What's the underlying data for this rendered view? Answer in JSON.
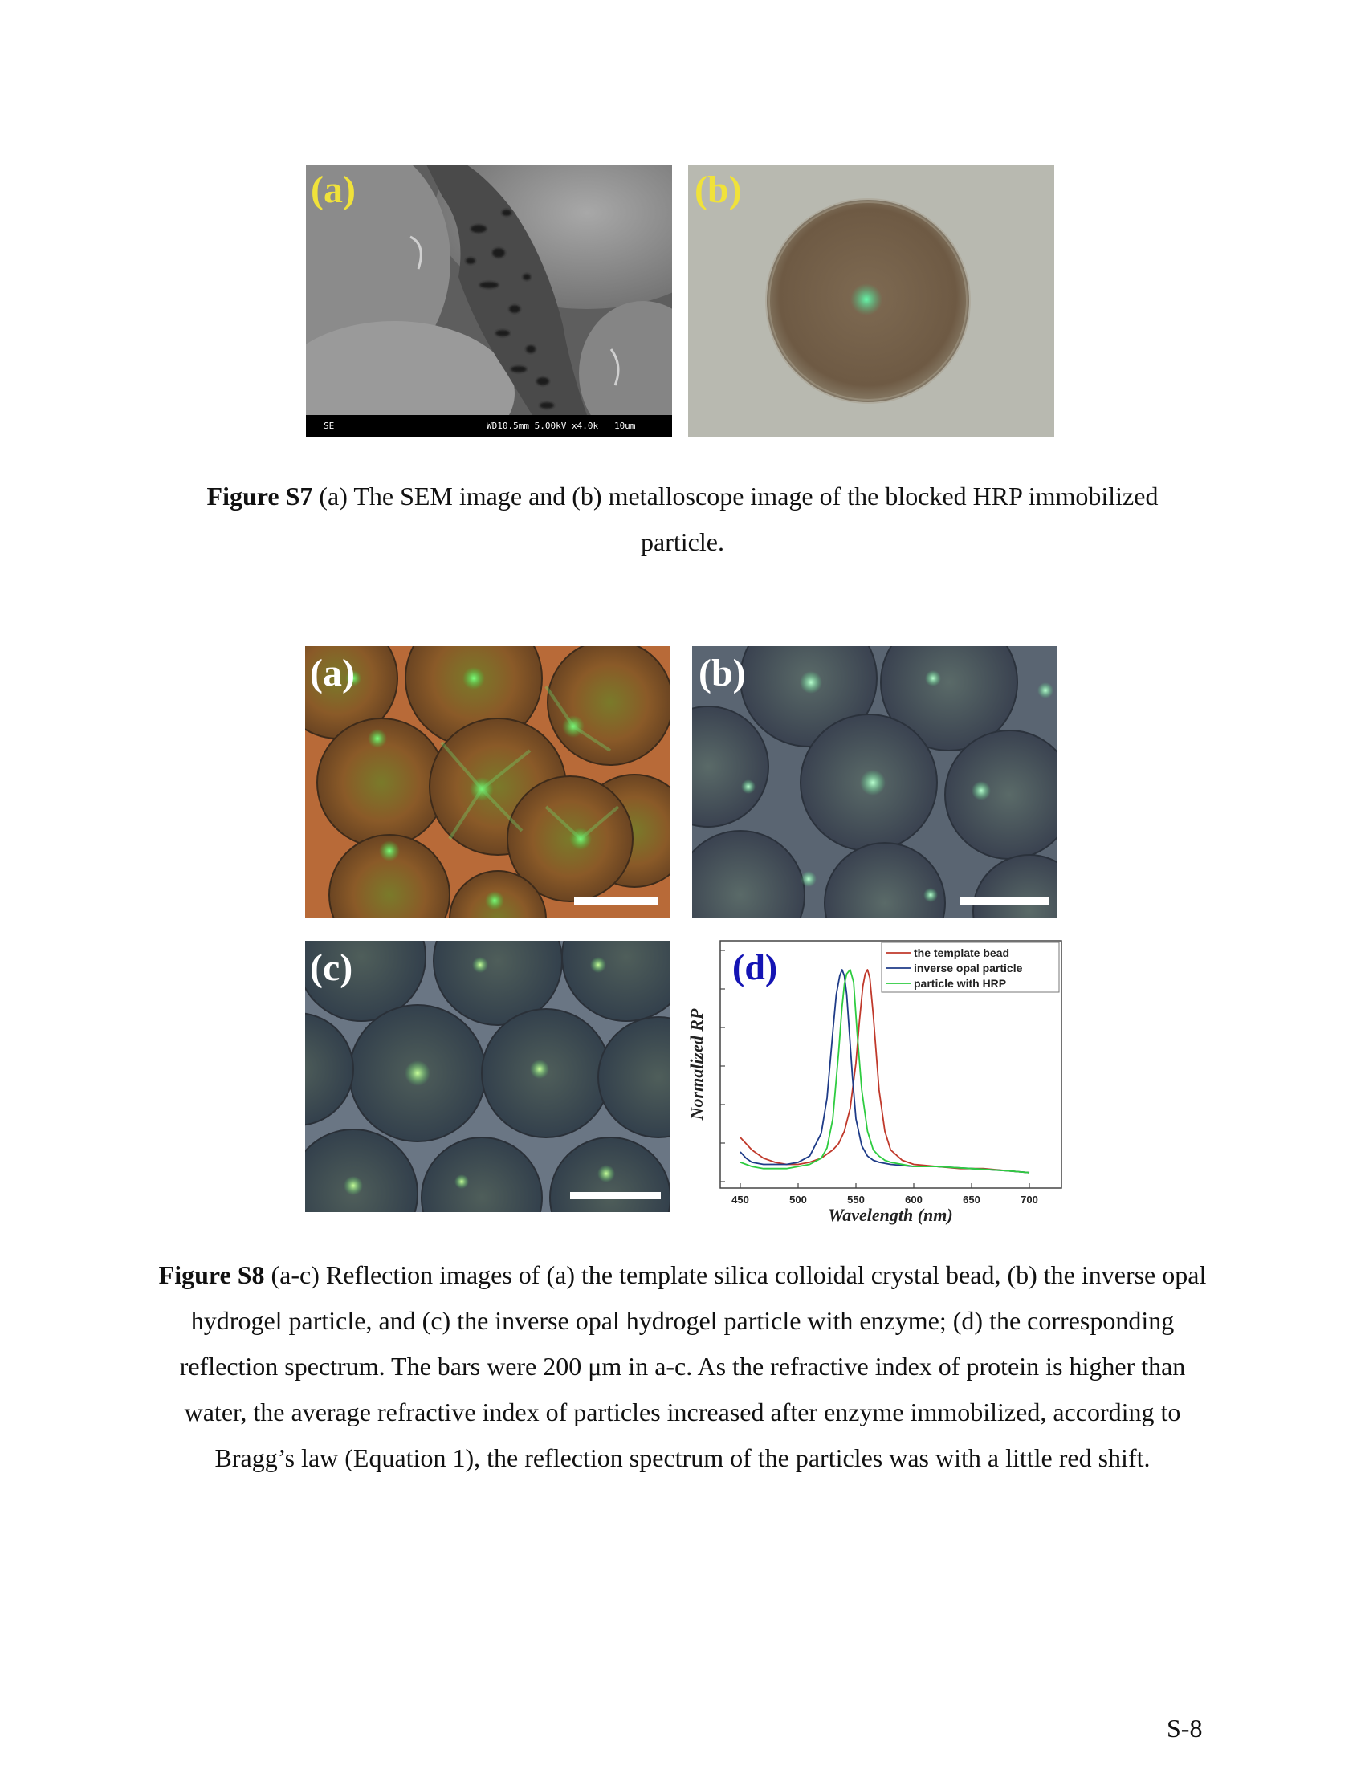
{
  "figure_s7": {
    "panel_a": {
      "label": "(a)",
      "sem_info_left": "SE",
      "sem_info_right": "WD10.5mm 5.00kV x4.0k   10um"
    },
    "panel_b": {
      "label": "(b)"
    },
    "caption_bold": "Figure S7",
    "caption_text": " (a) The SEM image and (b) metalloscope image of the blocked HRP immobilized particle."
  },
  "figure_s8": {
    "panel_a": {
      "label": "(a)"
    },
    "panel_b": {
      "label": "(b)"
    },
    "panel_c": {
      "label": "(c)"
    },
    "caption_bold": "Figure S8",
    "caption_text": " (a-c) Reflection images of (a) the template silica colloidal crystal bead, (b) the inverse opal hydrogel particle, and (c) the inverse opal hydrogel particle with enzyme; (d) the corresponding reflection spectrum. The bars were 200 μm in a-c. As the refractive index of protein is higher than water, the average refractive index of particles increased after enzyme immobilized, according to Bragg’s law (Equation 1), the reflection spectrum of the particles was with a little red shift."
  },
  "chart_data": {
    "type": "line",
    "panel_label": "(d)",
    "xlabel": "Wavelength (nm)",
    "ylabel": "Normalized RP",
    "xlim": [
      450,
      700
    ],
    "ylim": [
      0,
      1
    ],
    "x_ticks": [
      "450",
      "500",
      "550",
      "600",
      "650",
      "700"
    ],
    "legend_position": "top-right",
    "series": [
      {
        "name": "the template bead",
        "color": "#c0392b",
        "x": [
          450,
          460,
          470,
          480,
          490,
          500,
          510,
          520,
          530,
          535,
          540,
          545,
          550,
          553,
          556,
          558,
          560,
          562,
          565,
          570,
          575,
          580,
          590,
          600,
          620,
          640,
          660,
          680,
          700
        ],
        "y": [
          0.19,
          0.13,
          0.09,
          0.07,
          0.06,
          0.06,
          0.07,
          0.09,
          0.13,
          0.16,
          0.22,
          0.33,
          0.55,
          0.75,
          0.92,
          0.98,
          1.0,
          0.96,
          0.78,
          0.42,
          0.22,
          0.13,
          0.08,
          0.06,
          0.05,
          0.04,
          0.04,
          0.03,
          0.02
        ]
      },
      {
        "name": "inverse opal particle",
        "color": "#1f3c88",
        "x": [
          450,
          455,
          460,
          470,
          480,
          490,
          500,
          510,
          520,
          525,
          530,
          533,
          536,
          538,
          540,
          542,
          544,
          547,
          550,
          555,
          560,
          565,
          570,
          580,
          600,
          620,
          650,
          680,
          700
        ],
        "y": [
          0.12,
          0.09,
          0.07,
          0.06,
          0.06,
          0.06,
          0.07,
          0.1,
          0.21,
          0.38,
          0.7,
          0.88,
          0.97,
          1.0,
          0.97,
          0.88,
          0.72,
          0.48,
          0.28,
          0.15,
          0.1,
          0.08,
          0.07,
          0.06,
          0.05,
          0.05,
          0.04,
          0.03,
          0.02
        ]
      },
      {
        "name": "particle with HRP",
        "color": "#2ecc40",
        "x": [
          450,
          460,
          470,
          480,
          490,
          500,
          510,
          520,
          525,
          530,
          535,
          538,
          540,
          542,
          545,
          548,
          551,
          555,
          560,
          565,
          570,
          575,
          580,
          590,
          600,
          620,
          650,
          680,
          700
        ],
        "y": [
          0.07,
          0.05,
          0.04,
          0.04,
          0.04,
          0.05,
          0.06,
          0.09,
          0.14,
          0.28,
          0.6,
          0.82,
          0.93,
          0.98,
          1.0,
          0.94,
          0.7,
          0.42,
          0.22,
          0.13,
          0.1,
          0.08,
          0.07,
          0.06,
          0.05,
          0.05,
          0.04,
          0.03,
          0.02
        ]
      }
    ]
  },
  "page_number": "S-8"
}
